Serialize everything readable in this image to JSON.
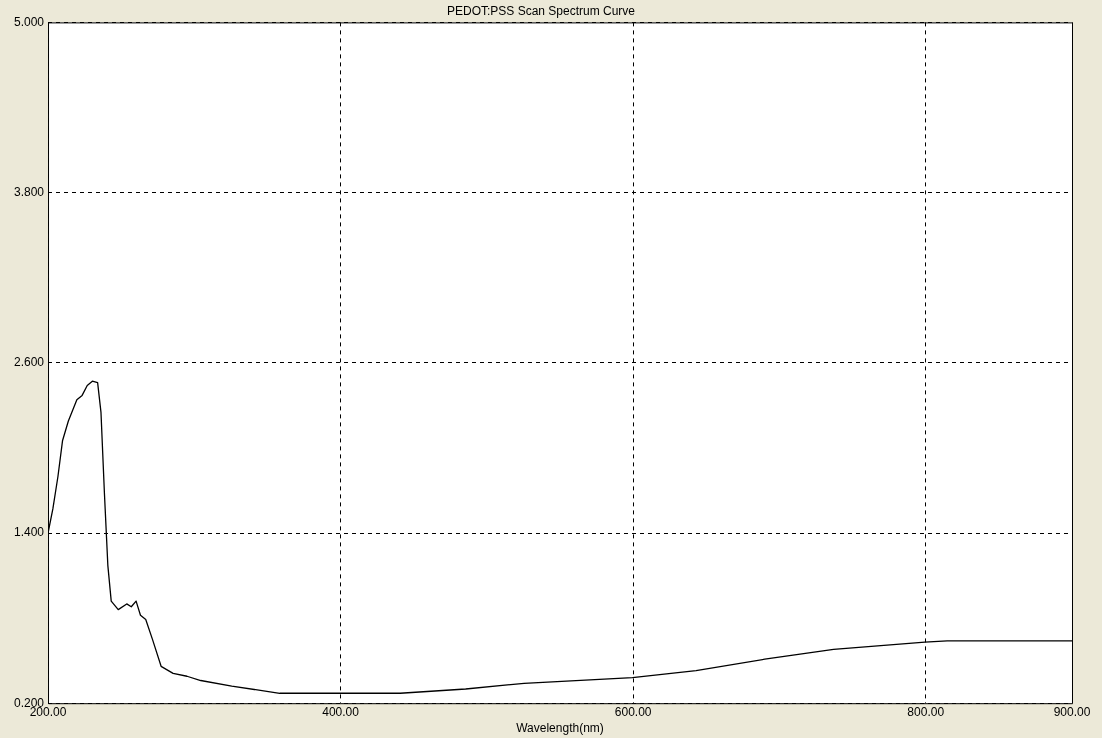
{
  "chart_data": {
    "type": "line",
    "title": "PEDOT:PSS Scan Spectrum Curve",
    "xlabel": "Wavelength(nm)",
    "x": [
      200,
      203.3,
      206.8,
      209.9,
      213.9,
      219.7,
      223.3,
      226.8,
      230.3,
      233.9,
      236.2,
      238.6,
      240.9,
      243.2,
      248,
      253.8,
      256.9,
      260.2,
      263.2,
      266.8,
      271.4,
      277.3,
      285.5,
      295,
      304.4,
      325.6,
      358.4,
      398.4,
      440.7,
      485.5,
      525.4,
      599.5,
      643,
      690,
      737,
      799.4,
      814.7,
      900
    ],
    "series": [
      {
        "color": "#000000",
        "values": [
          1.4,
          1.57,
          1.8,
          2.05,
          2.19,
          2.34,
          2.37,
          2.44,
          2.47,
          2.46,
          2.25,
          1.67,
          1.17,
          0.92,
          0.86,
          0.9,
          0.88,
          0.92,
          0.82,
          0.79,
          0.65,
          0.46,
          0.41,
          0.39,
          0.36,
          0.32,
          0.27,
          0.27,
          0.27,
          0.3,
          0.34,
          0.38,
          0.43,
          0.51,
          0.58,
          0.63,
          0.64,
          0.64
        ]
      }
    ],
    "xlim": [
      200,
      900
    ],
    "ylim": [
      0.2,
      5.0
    ],
    "xticks": [
      {
        "value": 200,
        "label": "200.00"
      },
      {
        "value": 400,
        "label": "400.00"
      },
      {
        "value": 600,
        "label": "600.00"
      },
      {
        "value": 800,
        "label": "800.00"
      },
      {
        "value": 900,
        "label": "900.00"
      }
    ],
    "yticks": [
      {
        "value": 0.2,
        "label": "0.200"
      },
      {
        "value": 1.4,
        "label": "1.400"
      },
      {
        "value": 2.6,
        "label": "2.600"
      },
      {
        "value": 3.8,
        "label": "3.800"
      },
      {
        "value": 5.0,
        "label": "5.000"
      }
    ],
    "grid": true,
    "legend": false,
    "marker": "none",
    "line_style": "solid"
  }
}
